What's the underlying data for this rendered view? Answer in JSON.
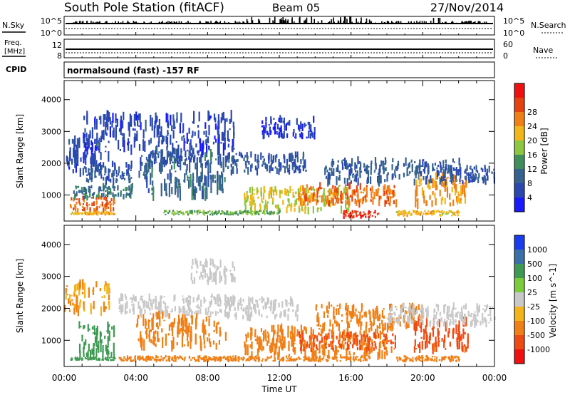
{
  "header": {
    "station": "South Pole Station (fitACF)",
    "beam": "Beam 05",
    "date": "27/Nov/2014"
  },
  "strip_panels": {
    "nsky": {
      "left_label": "N.Sky",
      "right_label": "N.Search",
      "left_ticks": [
        "10^5",
        "10^0"
      ],
      "right_ticks": [
        "10^5",
        "10^0"
      ]
    },
    "freq": {
      "left_label_lines": [
        "Freq.",
        "[MHz]"
      ],
      "right_label": "Nave",
      "left_ticks": [
        "12",
        "8"
      ],
      "right_ticks": [
        "60",
        "0"
      ]
    },
    "cpid": {
      "label": "CPID",
      "text": "normalsound (fast) -157 RF"
    }
  },
  "time_axis": {
    "ticks": [
      "00:00",
      "04:00",
      "08:00",
      "12:00",
      "16:00",
      "20:00",
      "00:00"
    ],
    "label": "Time UT"
  },
  "colors": {
    "power": [
      "#1a1aff",
      "#2a48b0",
      "#35628f",
      "#3e8f5c",
      "#8ec63f",
      "#f2b619",
      "#f07f16",
      "#e6410e",
      "#f01010"
    ],
    "velocity": [
      "#f01010",
      "#ef4a12",
      "#f07f16",
      "#f2b419",
      "#c8c8c8",
      "#7ccc3a",
      "#3e9a52",
      "#3970a8",
      "#1a3cf0"
    ]
  },
  "chart_data": [
    {
      "type": "heatmap",
      "title": "Power",
      "ylabel": "Slant Range [km]",
      "xlabel": "Time UT",
      "ylim": [
        180,
        4600
      ],
      "y_ticks": [
        1000,
        2000,
        3000,
        4000
      ],
      "colorbar": {
        "label": "Power [dB]",
        "ticks": [
          4,
          8,
          12,
          16,
          20,
          24,
          28
        ],
        "range": [
          0,
          32
        ]
      },
      "regions": [
        {
          "t": [
            0.0,
            2.5
          ],
          "r": [
            1700,
            2800
          ],
          "v": 5
        },
        {
          "t": [
            0.3,
            2.8
          ],
          "r": [
            500,
            950
          ],
          "v": 25
        },
        {
          "t": [
            0.5,
            3.8
          ],
          "r": [
            900,
            1300
          ],
          "v": 10
        },
        {
          "t": [
            1.0,
            3.8
          ],
          "r": [
            1400,
            2000
          ],
          "v": 7
        },
        {
          "t": [
            4.0,
            9.0
          ],
          "r": [
            1000,
            2300
          ],
          "v": 9
        },
        {
          "t": [
            4.5,
            8.0
          ],
          "r": [
            1900,
            2400
          ],
          "v": 6
        },
        {
          "t": [
            9.0,
            13.5
          ],
          "r": [
            1700,
            2300
          ],
          "v": 7
        },
        {
          "t": [
            10.0,
            16.0
          ],
          "r": [
            500,
            1200
          ],
          "v": 18
        },
        {
          "t": [
            13.0,
            18.5
          ],
          "r": [
            700,
            1300
          ],
          "v": 24
        },
        {
          "t": [
            14.5,
            22.0
          ],
          "r": [
            1400,
            2100
          ],
          "v": 8
        },
        {
          "t": [
            19.5,
            22.5
          ],
          "r": [
            700,
            1600
          ],
          "v": 22
        },
        {
          "t": [
            21.0,
            24.0
          ],
          "r": [
            1400,
            1900
          ],
          "v": 7
        },
        {
          "t": [
            1.0,
            9.5
          ],
          "r": [
            2400,
            3500
          ],
          "v": 5
        },
        {
          "t": [
            11.0,
            14.0
          ],
          "r": [
            2800,
            3400
          ],
          "v": 4
        },
        {
          "t": [
            0.3,
            2.8
          ],
          "r": [
            380,
            470
          ],
          "v": 20
        },
        {
          "t": [
            5.5,
            12.0
          ],
          "r": [
            380,
            500
          ],
          "v": 14
        },
        {
          "t": [
            15.5,
            17.5
          ],
          "r": [
            300,
            500
          ],
          "v": 28
        },
        {
          "t": [
            18.5,
            22.0
          ],
          "r": [
            350,
            500
          ],
          "v": 20
        }
      ]
    },
    {
      "type": "heatmap",
      "title": "Velocity",
      "ylabel": "Slant Range [km]",
      "xlabel": "Time UT",
      "ylim": [
        180,
        4600
      ],
      "y_ticks": [
        1000,
        2000,
        3000,
        4000
      ],
      "colorbar": {
        "label": "Velocity [m s^-1]",
        "ticks": [
          -1000,
          -500,
          -100,
          -25,
          25,
          100,
          500,
          1000
        ]
      },
      "regions": [
        {
          "t": [
            0.0,
            2.5
          ],
          "r": [
            1900,
            2800
          ],
          "v": -100
        },
        {
          "t": [
            0.8,
            2.8
          ],
          "r": [
            500,
            1500
          ],
          "v": 300
        },
        {
          "t": [
            3.0,
            9.5
          ],
          "r": [
            1800,
            2400
          ],
          "v": 0
        },
        {
          "t": [
            4.0,
            9.0
          ],
          "r": [
            800,
            1800
          ],
          "v": -150
        },
        {
          "t": [
            9.0,
            13.0
          ],
          "r": [
            1700,
            2300
          ],
          "v": 0
        },
        {
          "t": [
            10.0,
            18.0
          ],
          "r": [
            500,
            1400
          ],
          "v": -250
        },
        {
          "t": [
            13.0,
            18.5
          ],
          "r": [
            700,
            1200
          ],
          "v": -600
        },
        {
          "t": [
            14.0,
            20.0
          ],
          "r": [
            1400,
            2100
          ],
          "v": -150
        },
        {
          "t": [
            19.5,
            22.5
          ],
          "r": [
            700,
            1600
          ],
          "v": -700
        },
        {
          "t": [
            18.0,
            24.0
          ],
          "r": [
            1500,
            2100
          ],
          "v": 0
        },
        {
          "t": [
            3.0,
            17.0
          ],
          "r": [
            350,
            500
          ],
          "v": -200
        },
        {
          "t": [
            18.5,
            22.0
          ],
          "r": [
            350,
            500
          ],
          "v": -300
        },
        {
          "t": [
            0.3,
            2.8
          ],
          "r": [
            380,
            460
          ],
          "v": 300
        },
        {
          "t": [
            7.0,
            9.5
          ],
          "r": [
            2800,
            3500
          ],
          "v": 0
        }
      ]
    }
  ]
}
